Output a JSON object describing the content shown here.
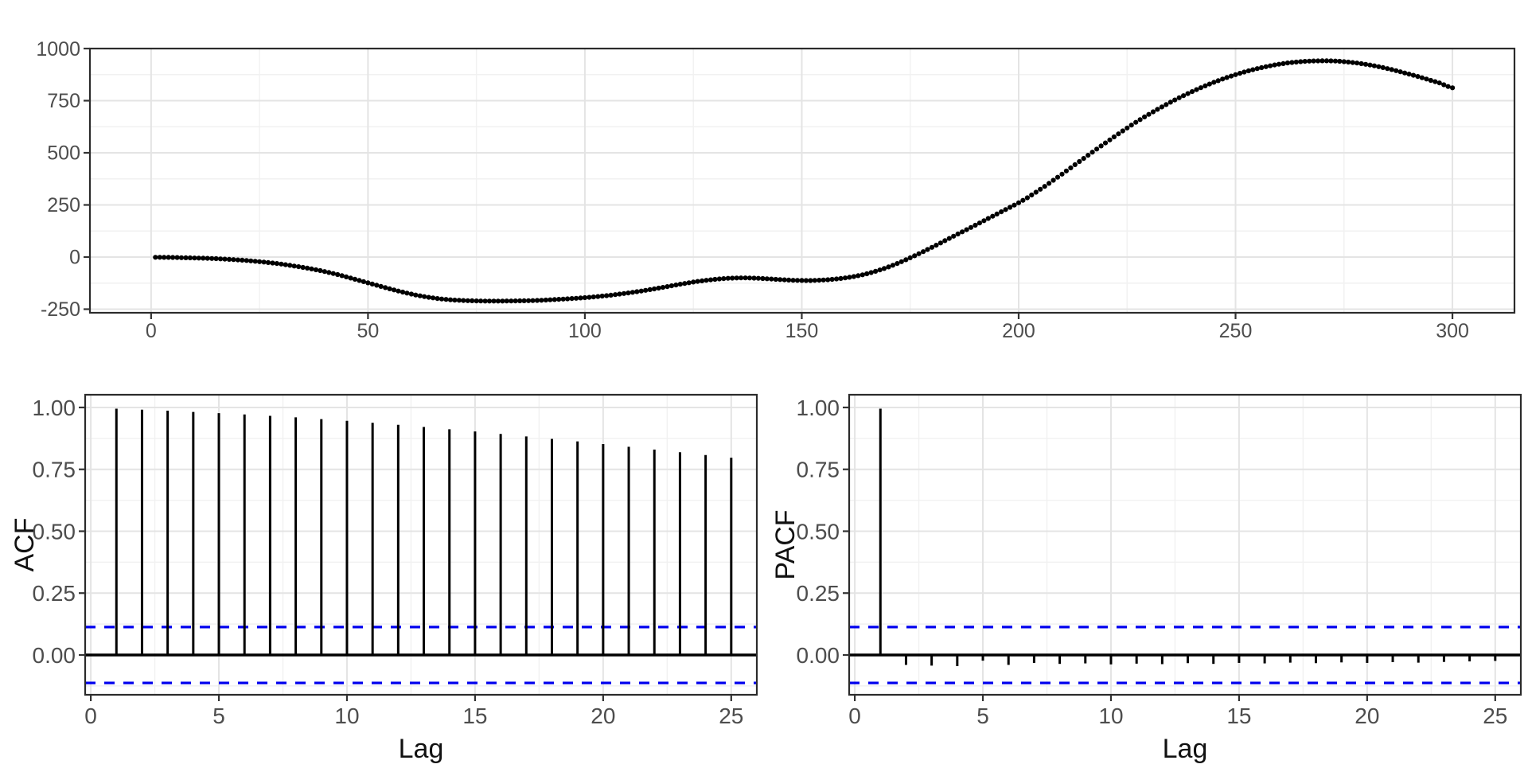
{
  "style": {
    "background": "#FFFFFF",
    "accent_blue": "#0000EE",
    "grid_major": "#E4E4E4",
    "grid_minor": "#F1F1F1",
    "panel_border": "#2B2B2B",
    "tick_label_color": "#4D4D4D",
    "axis_title_color": "#111111",
    "point_color": "#000000",
    "stem_color": "#000000"
  },
  "chart_data": [
    {
      "id": "time-series",
      "type": "scatter",
      "title": "",
      "xlabel": "",
      "ylabel": "",
      "legend": "none",
      "grid": true,
      "x_ticks": [
        0,
        50,
        100,
        150,
        200,
        250,
        300
      ],
      "x_tick_labels": [
        "0",
        "50",
        "100",
        "150",
        "200",
        "250",
        "300"
      ],
      "y_ticks": [
        -250,
        0,
        250,
        500,
        750,
        1000
      ],
      "y_tick_labels": [
        "-250",
        "0",
        "250",
        "500",
        "750",
        "1000"
      ],
      "xlim": [
        -14.1,
        314.3
      ],
      "ylim": [
        -267.2,
        1000
      ],
      "points_x": [
        1,
        5,
        9,
        13,
        17,
        21,
        25,
        29,
        33,
        37,
        41,
        45,
        49,
        53,
        57,
        61,
        65,
        69,
        73,
        77,
        81,
        85,
        89,
        93,
        97,
        101,
        105,
        109,
        113,
        117,
        121,
        125,
        129,
        133,
        137,
        141,
        145,
        149,
        153,
        157,
        161,
        165,
        169,
        173,
        177,
        181,
        185,
        189,
        193,
        197,
        201,
        205,
        209,
        213,
        217,
        221,
        225,
        229,
        233,
        237,
        241,
        245,
        249,
        253,
        257,
        261,
        265,
        269,
        273,
        277,
        281,
        285,
        289,
        293,
        297,
        300
      ],
      "points_y": [
        -1,
        -2,
        -4,
        -6,
        -10,
        -15,
        -22,
        -31,
        -43,
        -57,
        -74,
        -95,
        -118,
        -141,
        -163,
        -182,
        -196,
        -205,
        -209,
        -211,
        -211,
        -210,
        -208,
        -204,
        -199,
        -193,
        -185,
        -175,
        -163,
        -149,
        -134,
        -120,
        -109,
        -102,
        -100,
        -103,
        -108,
        -112,
        -112,
        -107,
        -97,
        -80,
        -55,
        -22,
        16,
        57,
        100,
        142,
        185,
        228,
        272,
        325,
        383,
        443,
        503,
        562,
        619,
        672,
        720,
        764,
        803,
        838,
        868,
        893,
        913,
        928,
        937,
        941,
        940,
        933,
        921,
        904,
        883,
        860,
        835,
        812
      ]
    },
    {
      "id": "acf",
      "type": "stem",
      "title": "",
      "xlabel": "Lag",
      "ylabel": "ACF",
      "grid": true,
      "x_ticks": [
        0,
        5,
        10,
        15,
        20,
        25
      ],
      "x_tick_labels": [
        "0",
        "5",
        "10",
        "15",
        "20",
        "25"
      ],
      "y_ticks": [
        0,
        0.25,
        0.5,
        0.75,
        1
      ],
      "y_tick_labels": [
        "0.00",
        "0.25",
        "0.50",
        "0.75",
        "1.00"
      ],
      "xlim": [
        -0.22,
        26.0
      ],
      "ylim": [
        -0.1608,
        1.0514
      ],
      "lags": [
        1,
        2,
        3,
        4,
        5,
        6,
        7,
        8,
        9,
        10,
        11,
        12,
        13,
        14,
        15,
        16,
        17,
        18,
        19,
        20,
        21,
        22,
        23,
        24,
        25
      ],
      "values": [
        0.995,
        0.991,
        0.987,
        0.982,
        0.977,
        0.972,
        0.966,
        0.96,
        0.953,
        0.946,
        0.938,
        0.93,
        0.921,
        0.912,
        0.903,
        0.893,
        0.883,
        0.873,
        0.863,
        0.852,
        0.841,
        0.83,
        0.819,
        0.808,
        0.797
      ],
      "conf_band": 0.113,
      "zero_line": true
    },
    {
      "id": "pacf",
      "type": "stem",
      "title": "",
      "xlabel": "Lag",
      "ylabel": "PACF",
      "grid": true,
      "x_ticks": [
        0,
        5,
        10,
        15,
        20,
        25
      ],
      "x_tick_labels": [
        "0",
        "5",
        "10",
        "15",
        "20",
        "25"
      ],
      "y_ticks": [
        0,
        0.25,
        0.5,
        0.75,
        1
      ],
      "y_tick_labels": [
        "0.00",
        "0.25",
        "0.50",
        "0.75",
        "1.00"
      ],
      "xlim": [
        -0.22,
        26.0
      ],
      "ylim": [
        -0.1608,
        1.0514
      ],
      "lags": [
        1,
        2,
        3,
        4,
        5,
        6,
        7,
        8,
        9,
        10,
        11,
        12,
        13,
        14,
        15,
        16,
        17,
        18,
        19,
        20,
        21,
        22,
        23,
        24,
        25
      ],
      "values": [
        0.995,
        -0.04,
        -0.043,
        -0.045,
        -0.023,
        -0.04,
        -0.032,
        -0.036,
        -0.034,
        -0.038,
        -0.035,
        -0.037,
        -0.033,
        -0.036,
        -0.032,
        -0.034,
        -0.031,
        -0.033,
        -0.03,
        -0.032,
        -0.029,
        -0.031,
        -0.028,
        -0.026,
        -0.024
      ],
      "conf_band": 0.113,
      "zero_line": true
    }
  ]
}
